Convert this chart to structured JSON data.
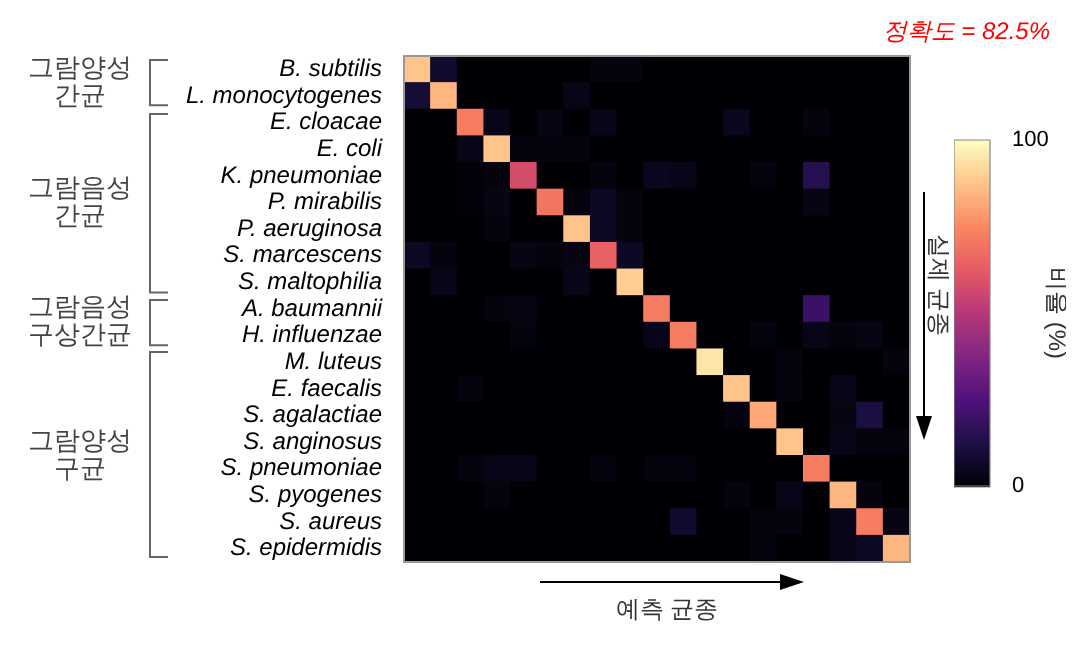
{
  "chart_data": {
    "type": "heatmap",
    "title": "정확도 = 82.5%",
    "xlabel": "예측 균종",
    "ylabel": "실제 균종",
    "clabel": "비율 (%)",
    "categories": [
      null,
      null,
      null,
      null,
      null,
      null,
      null,
      null,
      null,
      null,
      null,
      null,
      null,
      null,
      null,
      null,
      null,
      null,
      null
    ],
    "y_categories": [
      "B. subtilis",
      "L. monocytogenes",
      "E. cloacae",
      "E. coli",
      "K. pneumoniae",
      "P. mirabilis",
      "P. aeruginosa",
      "S. marcescens",
      "S. maltophilia",
      "A. baumannii",
      "H. influenzae",
      "M. luteus",
      "E. faecalis",
      "S. agalactiae",
      "S. anginosus",
      "S. pneumoniae",
      "S. pyogenes",
      "S. aureus",
      "S. epidermidis"
    ],
    "cells": [
      [
        88,
        8,
        0,
        0,
        0,
        0,
        0,
        2,
        2,
        0,
        0,
        0,
        0,
        0,
        0,
        0,
        0,
        0,
        0
      ],
      [
        10,
        85,
        0,
        0,
        0,
        0,
        4,
        0,
        0,
        0,
        0,
        0,
        0,
        0,
        0,
        0,
        0,
        0,
        0
      ],
      [
        0,
        0,
        72,
        4,
        0,
        3,
        0,
        4,
        0,
        0,
        0,
        0,
        5,
        0,
        0,
        2,
        0,
        0,
        0
      ],
      [
        0,
        0,
        4,
        88,
        2,
        2,
        2,
        0,
        0,
        0,
        0,
        0,
        0,
        0,
        0,
        0,
        0,
        0,
        0
      ],
      [
        0,
        0,
        1,
        2,
        58,
        0,
        0,
        2,
        0,
        5,
        4,
        0,
        0,
        2,
        0,
        15,
        0,
        0,
        0
      ],
      [
        0,
        0,
        1,
        3,
        0,
        70,
        2,
        6,
        2,
        0,
        0,
        0,
        0,
        0,
        0,
        3,
        0,
        0,
        0
      ],
      [
        0,
        0,
        0,
        2,
        0,
        0,
        88,
        6,
        2,
        0,
        0,
        0,
        0,
        0,
        0,
        0,
        0,
        0,
        0
      ],
      [
        6,
        2,
        0,
        0,
        3,
        2,
        3,
        65,
        6,
        0,
        0,
        0,
        0,
        0,
        0,
        0,
        0,
        0,
        0
      ],
      [
        0,
        4,
        0,
        0,
        0,
        0,
        4,
        0,
        90,
        0,
        0,
        0,
        0,
        0,
        0,
        0,
        0,
        0,
        0
      ],
      [
        0,
        0,
        0,
        2,
        3,
        0,
        0,
        0,
        0,
        72,
        0,
        0,
        0,
        0,
        0,
        20,
        0,
        0,
        0
      ],
      [
        0,
        0,
        0,
        0,
        2,
        0,
        0,
        0,
        0,
        4,
        72,
        0,
        0,
        2,
        0,
        4,
        2,
        3,
        0
      ],
      [
        0,
        0,
        0,
        0,
        0,
        0,
        0,
        0,
        0,
        0,
        0,
        95,
        0,
        0,
        2,
        0,
        0,
        0,
        2
      ],
      [
        0,
        0,
        2,
        0,
        0,
        0,
        0,
        0,
        0,
        0,
        0,
        0,
        88,
        0,
        2,
        0,
        4,
        0,
        0
      ],
      [
        0,
        0,
        0,
        0,
        0,
        0,
        0,
        0,
        0,
        0,
        0,
        0,
        2,
        82,
        0,
        0,
        3,
        12,
        0
      ],
      [
        0,
        0,
        0,
        0,
        0,
        0,
        0,
        0,
        0,
        0,
        0,
        0,
        0,
        0,
        88,
        0,
        4,
        2,
        2
      ],
      [
        0,
        0,
        2,
        4,
        4,
        0,
        0,
        2,
        0,
        2,
        2,
        0,
        0,
        0,
        0,
        72,
        0,
        0,
        0
      ],
      [
        0,
        0,
        0,
        2,
        0,
        0,
        0,
        0,
        0,
        0,
        0,
        0,
        2,
        0,
        4,
        0,
        85,
        2,
        0
      ],
      [
        0,
        0,
        0,
        0,
        0,
        0,
        0,
        0,
        0,
        0,
        8,
        0,
        0,
        2,
        2,
        0,
        4,
        72,
        3
      ],
      [
        0,
        0,
        0,
        0,
        0,
        0,
        0,
        0,
        0,
        0,
        0,
        0,
        0,
        2,
        0,
        0,
        4,
        6,
        85
      ]
    ],
    "clim": [
      0,
      100
    ],
    "cticks": [
      0,
      100
    ],
    "annotations": [
      "그람양성 간균",
      "그람음성 간균",
      "그람음성 구상간균",
      "그람양성 구균"
    ]
  }
}
